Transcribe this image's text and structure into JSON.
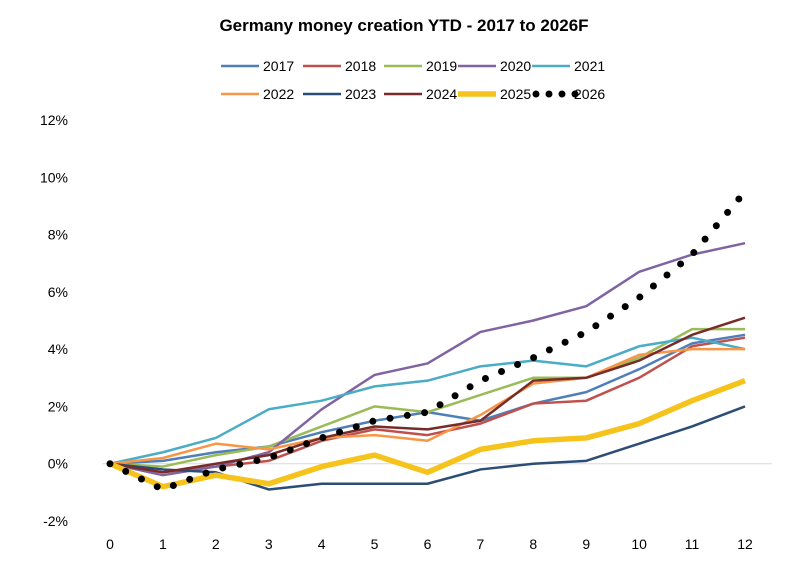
{
  "chart_data": {
    "type": "line",
    "title": "Germany money creation YTD - 2017 to 2026F",
    "xlabel": "",
    "ylabel": "",
    "x": [
      0,
      1,
      2,
      3,
      4,
      5,
      6,
      7,
      8,
      9,
      10,
      11,
      12
    ],
    "ylim": [
      -2,
      12
    ],
    "yticks": [
      "-2%",
      "0%",
      "2%",
      "4%",
      "6%",
      "8%",
      "10%",
      "12%"
    ],
    "ytick_values": [
      -2,
      0,
      2,
      4,
      6,
      8,
      10,
      12
    ],
    "grid": "zero-line only",
    "legend_position": "top-center",
    "series": [
      {
        "name": "2017",
        "color": "#4e7fb8",
        "style": "solid",
        "values": [
          0,
          0.1,
          0.4,
          0.6,
          1.1,
          1.5,
          1.8,
          1.5,
          2.1,
          2.5,
          3.3,
          4.2,
          4.5
        ]
      },
      {
        "name": "2018",
        "color": "#c0504d",
        "style": "solid",
        "values": [
          0,
          -0.3,
          -0.1,
          0.1,
          0.8,
          1.2,
          1.0,
          1.4,
          2.1,
          2.2,
          3.0,
          4.1,
          4.4
        ]
      },
      {
        "name": "2019",
        "color": "#9bbb59",
        "style": "solid",
        "values": [
          0,
          -0.1,
          0.3,
          0.6,
          1.3,
          2.0,
          1.8,
          2.4,
          3.0,
          3.0,
          3.7,
          4.7,
          4.7
        ]
      },
      {
        "name": "2020",
        "color": "#8064a2",
        "style": "solid",
        "values": [
          0,
          -0.4,
          -0.1,
          0.4,
          1.9,
          3.1,
          3.5,
          4.6,
          5.0,
          5.5,
          6.7,
          7.3,
          7.7
        ]
      },
      {
        "name": "2021",
        "color": "#4bacc6",
        "style": "solid",
        "values": [
          0,
          0.4,
          0.9,
          1.9,
          2.2,
          2.7,
          2.9,
          3.4,
          3.6,
          3.4,
          4.1,
          4.4,
          4.0
        ]
      },
      {
        "name": "2022",
        "color": "#f79646",
        "style": "solid",
        "values": [
          0,
          0.2,
          0.7,
          0.5,
          0.9,
          1.0,
          0.8,
          1.7,
          2.8,
          3.0,
          3.8,
          4.0,
          4.0
        ]
      },
      {
        "name": "2023",
        "color": "#2c4d75",
        "style": "solid",
        "values": [
          0,
          -0.2,
          -0.3,
          -0.9,
          -0.7,
          -0.7,
          -0.7,
          -0.2,
          0.0,
          0.1,
          0.7,
          1.3,
          2.0
        ]
      },
      {
        "name": "2024",
        "color": "#772c2a",
        "style": "solid",
        "values": [
          0,
          -0.3,
          0.0,
          0.3,
          0.9,
          1.3,
          1.2,
          1.5,
          2.9,
          3.0,
          3.6,
          4.5,
          5.1
        ]
      },
      {
        "name": "2025",
        "color": "#f6c31c",
        "style": "thick",
        "values": [
          0,
          -0.8,
          -0.4,
          -0.7,
          -0.1,
          0.3,
          -0.3,
          0.5,
          0.8,
          0.9,
          1.4,
          2.2,
          2.9
        ]
      },
      {
        "name": "2026",
        "color": "#000000",
        "style": "dotted",
        "values": [
          0,
          -0.9,
          -0.2,
          0.2,
          0.9,
          1.5,
          1.8,
          2.9,
          3.7,
          4.6,
          5.8,
          7.3,
          9.5
        ]
      }
    ]
  }
}
